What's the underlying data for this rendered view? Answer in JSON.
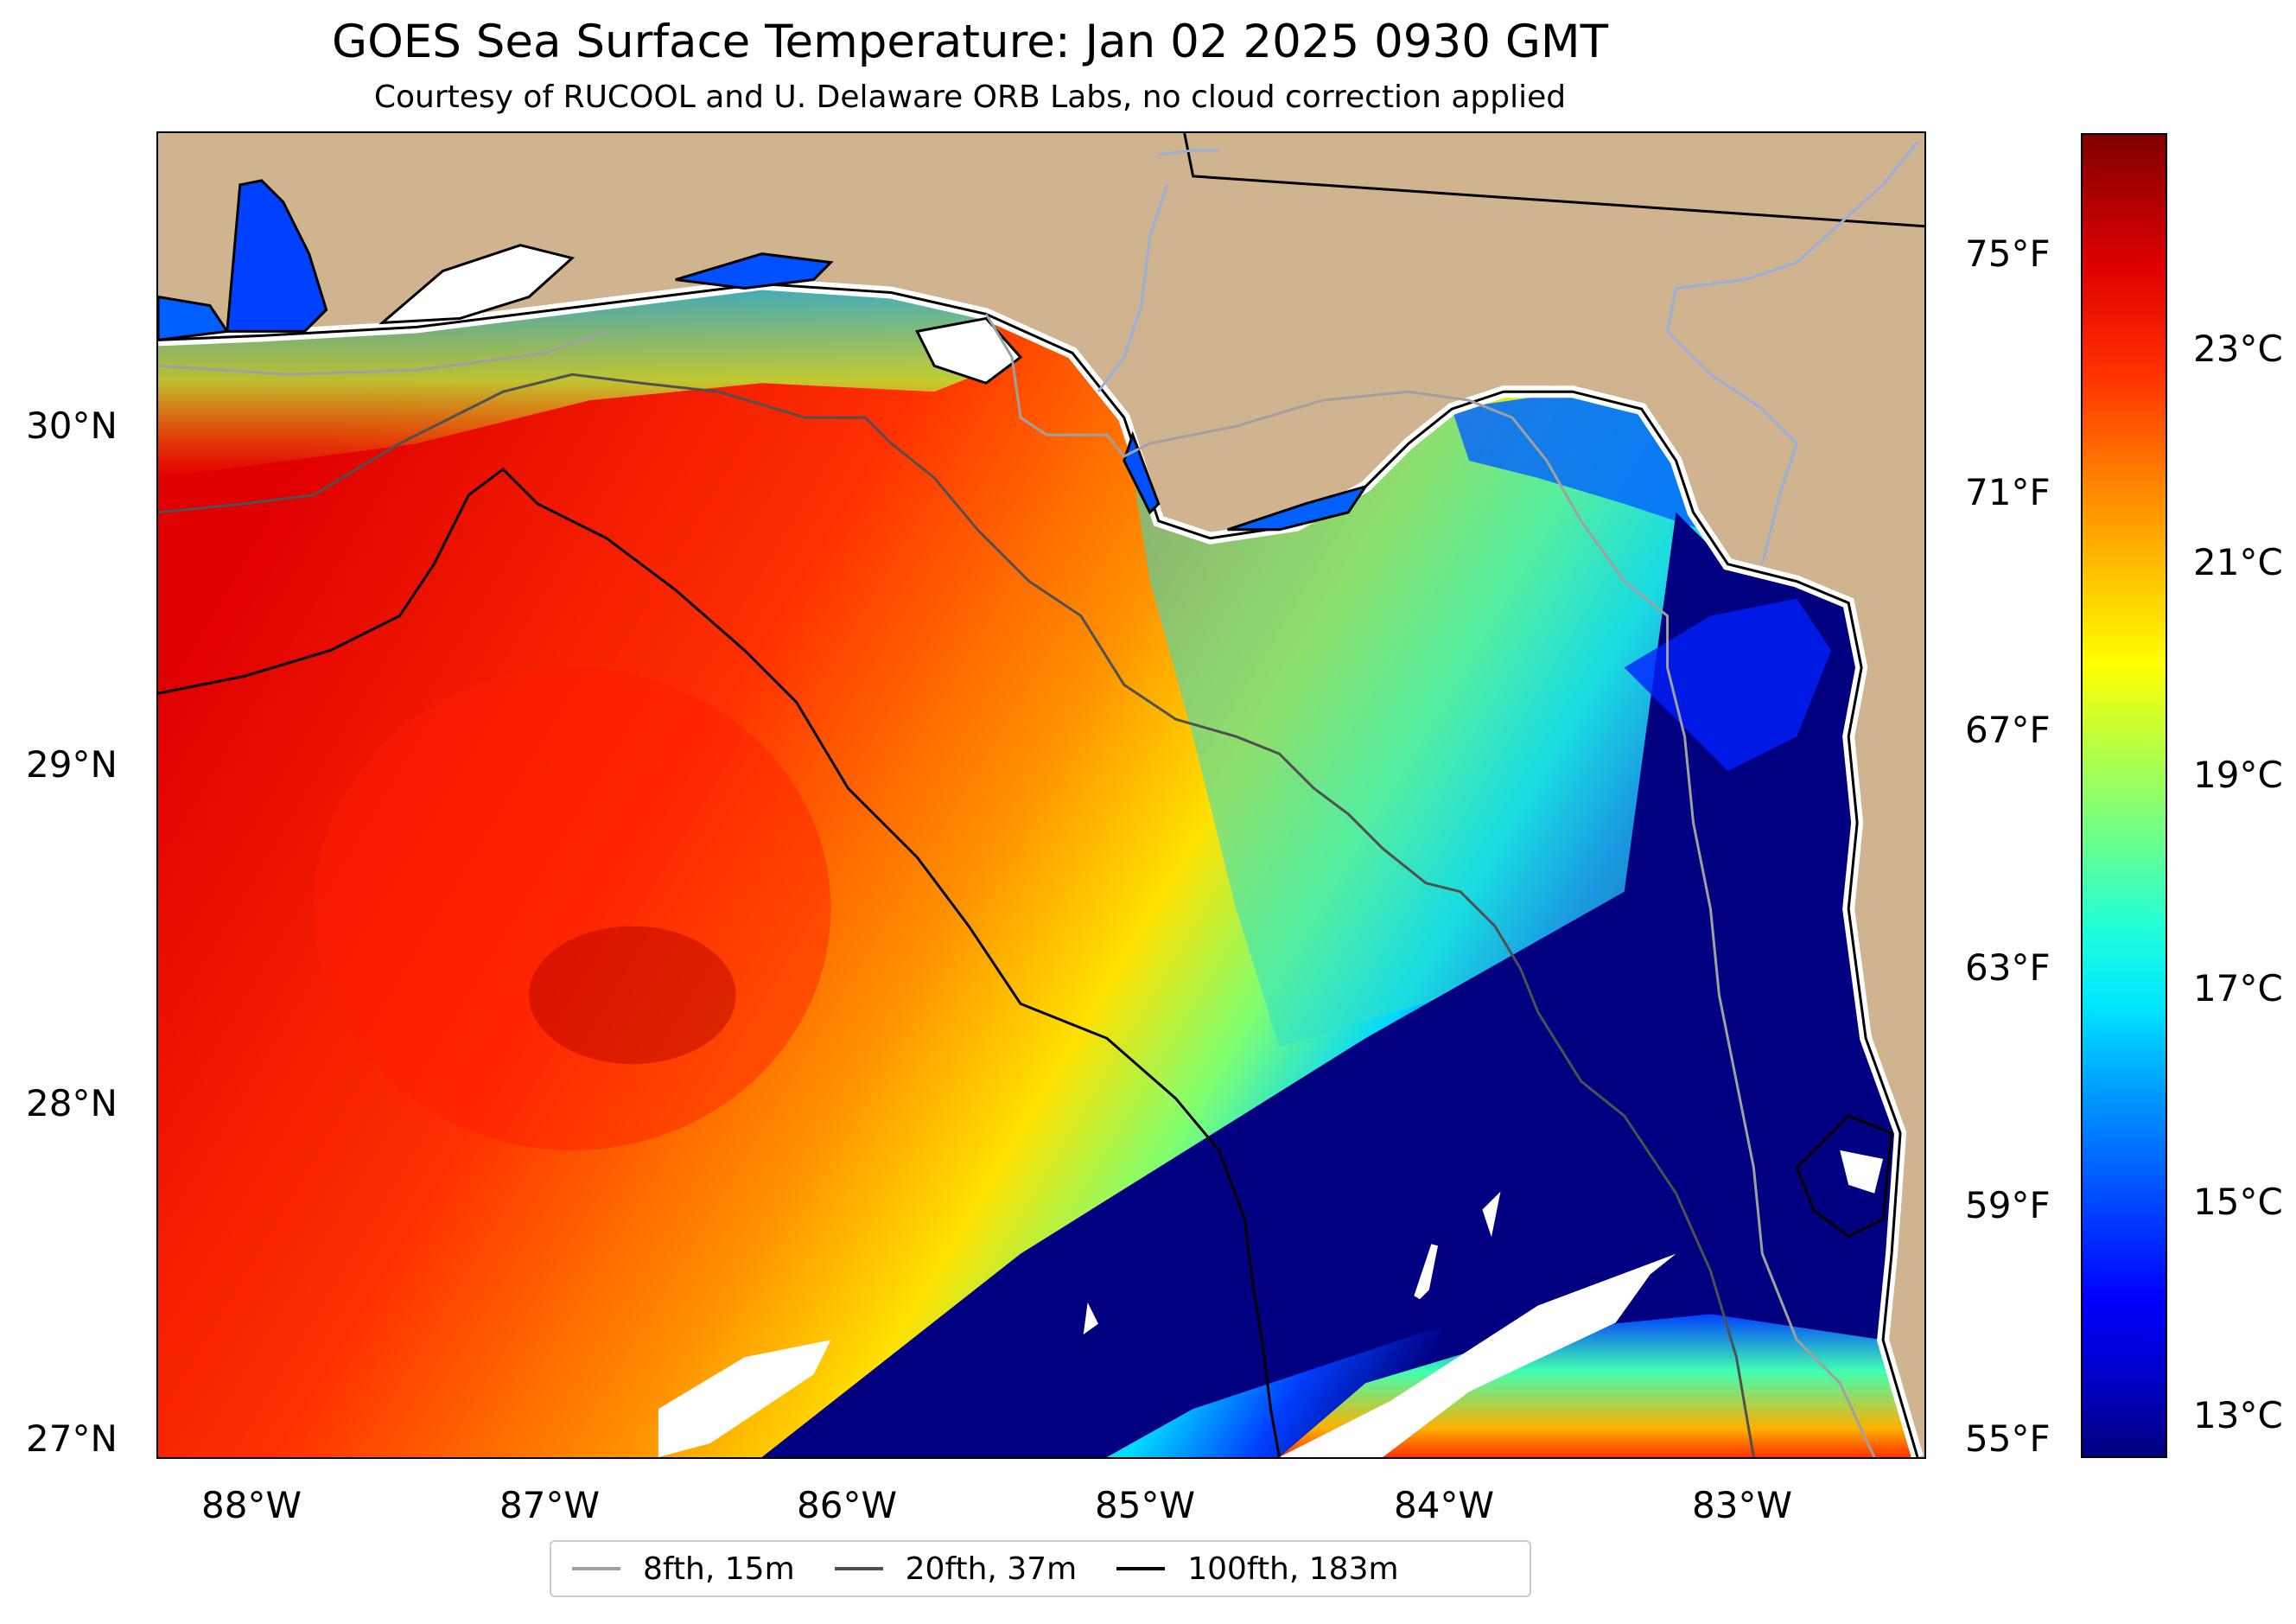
{
  "title": "GOES Sea Surface Temperature: Jan 02 2025 0930 GMT",
  "subtitle": "Courtesy of RUCOOL and U. Delaware ORB Labs, no cloud correction applied",
  "map": {
    "lon_labels": [
      "88°W",
      "87°W",
      "86°W",
      "85°W",
      "84°W",
      "83°W"
    ],
    "lat_labels": [
      "30°N",
      "29°N",
      "28°N",
      "27°N"
    ],
    "fahrenheit_labels": [
      "75°F",
      "71°F",
      "67°F",
      "63°F",
      "59°F",
      "55°F"
    ],
    "colors": {
      "land": "#d0b38f",
      "cold_water": "#000080",
      "cloud_gap": "#ffffff"
    }
  },
  "colorbar": {
    "labels": [
      "23°C",
      "21°C",
      "19°C",
      "17°C",
      "15°C",
      "13°C"
    ],
    "colormap": "jet"
  },
  "legend": {
    "items": [
      {
        "label": "8fth, 15m",
        "color": "#a0a0a0"
      },
      {
        "label": "20fth, 37m",
        "color": "#505050"
      },
      {
        "label": "100fth, 183m",
        "color": "#000000"
      }
    ]
  }
}
